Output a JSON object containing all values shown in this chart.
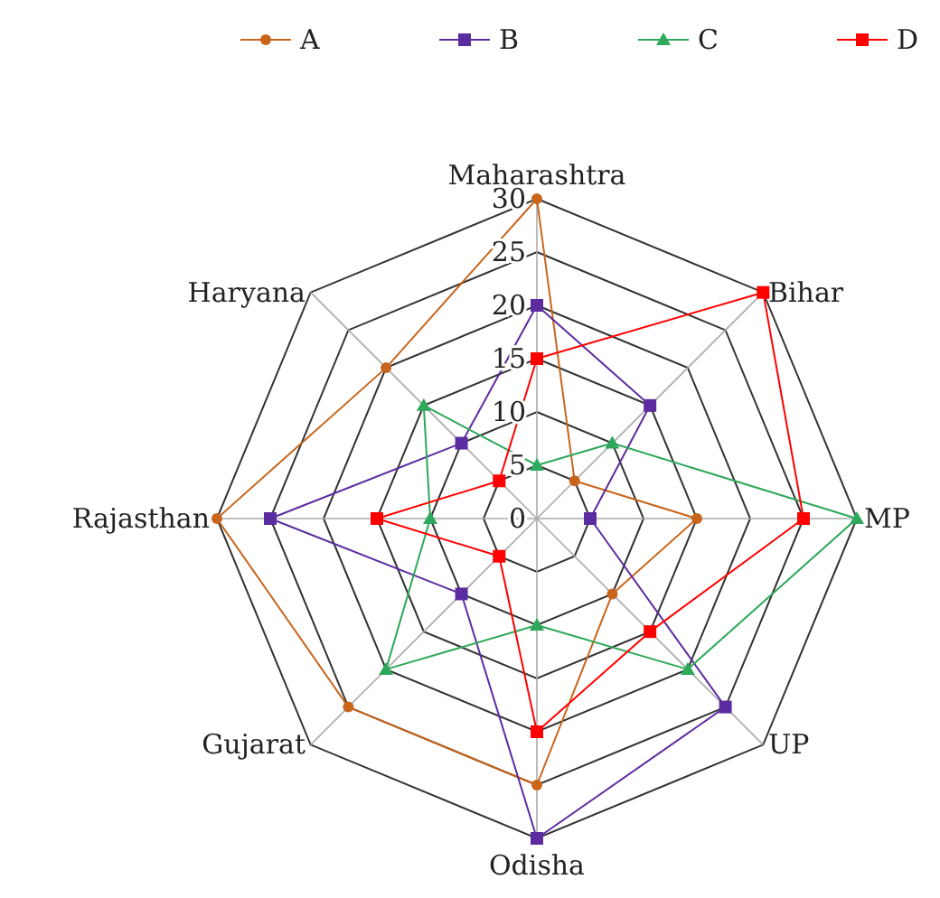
{
  "chart_data": {
    "type": "radar",
    "categories": [
      "Maharashtra",
      "Bihar",
      "MP",
      "UP",
      "Odisha",
      "Gujarat",
      "Rajasthan",
      "Haryana"
    ],
    "ylim": [
      0,
      30
    ],
    "yticks": [
      0,
      5,
      10,
      15,
      20,
      25,
      30
    ],
    "grid": true,
    "legend": "top",
    "series": [
      {
        "name": "A",
        "color": "#c8651b",
        "marker": "circle",
        "values": [
          30,
          5,
          15,
          10,
          25,
          25,
          30,
          20
        ]
      },
      {
        "name": "B",
        "color": "#5b2c9f",
        "marker": "square",
        "values": [
          20,
          15,
          5,
          25,
          30,
          10,
          25,
          10
        ]
      },
      {
        "name": "C",
        "color": "#2ea85a",
        "marker": "triangle",
        "values": [
          5,
          10,
          30,
          20,
          10,
          20,
          10,
          15
        ]
      },
      {
        "name": "D",
        "color": "#ff0000",
        "marker": "square",
        "values": [
          15,
          30,
          25,
          15,
          20,
          5,
          15,
          5
        ]
      }
    ]
  }
}
